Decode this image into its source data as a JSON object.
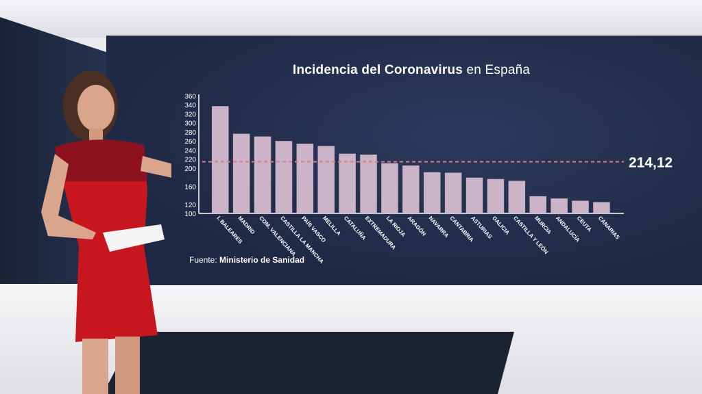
{
  "title_bold": "Incidencia del Coronavirus",
  "title_light": "en España",
  "source_label": "Fuente:",
  "source_name": "Ministerio de Sanidad",
  "reference_label": "214,12",
  "colors": {
    "bar": "#cbb3c8",
    "reference": "#e07a86",
    "text": "#ffffff"
  },
  "chart_data": {
    "type": "bar",
    "categories": [
      "I. BALEARES",
      "MADRID",
      "COM. VALENCIANA",
      "CASTILLA LA MANCHA",
      "PAÍS VASCO",
      "MELILLA",
      "CATALUÑA",
      "EXTREMADURA",
      "LA RIOJA",
      "ARAGÓN",
      "NAVARRA",
      "CANTABRIA",
      "ASTURIAS",
      "GALICIA",
      "CASTILLA Y LEÓN",
      "MURCIA",
      "ANDALUCÍA",
      "CEUTA",
      "CANARIAS"
    ],
    "values": [
      337,
      276,
      270,
      260,
      254,
      249,
      232,
      230,
      211,
      206,
      191,
      190,
      179,
      176,
      172,
      138,
      133,
      128,
      125
    ],
    "reference_value": 214.12,
    "ylim": [
      100,
      360
    ],
    "yticks": [
      100,
      120,
      140,
      160,
      180,
      200,
      220,
      240,
      260,
      280,
      300,
      320,
      340,
      360
    ],
    "hidden_yticks": [
      140,
      180
    ],
    "title": "Incidencia del Coronavirus en España",
    "xlabel": "",
    "ylabel": ""
  }
}
